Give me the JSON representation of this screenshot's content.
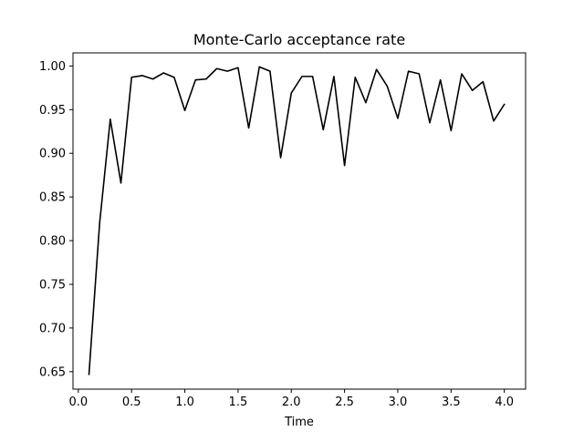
{
  "chart_data": {
    "type": "line",
    "title": "Monte-Carlo acceptance rate",
    "xlabel": "Time",
    "ylabel": "",
    "xlim": [
      -0.05,
      4.2
    ],
    "ylim": [
      0.63,
      1.015
    ],
    "xticks": [
      0.0,
      0.5,
      1.0,
      1.5,
      2.0,
      2.5,
      3.0,
      3.5,
      4.0
    ],
    "xtick_labels": [
      "0.0",
      "0.5",
      "1.0",
      "1.5",
      "2.0",
      "2.5",
      "3.0",
      "3.5",
      "4.0"
    ],
    "yticks": [
      0.65,
      0.7,
      0.75,
      0.8,
      0.85,
      0.9,
      0.95,
      1.0
    ],
    "ytick_labels": [
      "0.65",
      "0.70",
      "0.75",
      "0.80",
      "0.85",
      "0.90",
      "0.95",
      "1.00"
    ],
    "grid": false,
    "line_color": "#000000",
    "series": [
      {
        "x": [
          0.1,
          0.2,
          0.3,
          0.4,
          0.5,
          0.6,
          0.7,
          0.8,
          0.9,
          1.0,
          1.1,
          1.2,
          1.3,
          1.4,
          1.5,
          1.6,
          1.7,
          1.8,
          1.9,
          2.0,
          2.1,
          2.2,
          2.3,
          2.4,
          2.5,
          2.6,
          2.7,
          2.8,
          2.9,
          3.0,
          3.1,
          3.2,
          3.3,
          3.4,
          3.5,
          3.6,
          3.7,
          3.8,
          3.9,
          4.0
        ],
        "values": [
          0.647,
          0.82,
          0.939,
          0.866,
          0.987,
          0.989,
          0.985,
          0.992,
          0.987,
          0.949,
          0.984,
          0.985,
          0.997,
          0.994,
          0.998,
          0.929,
          0.999,
          0.994,
          0.895,
          0.969,
          0.988,
          0.988,
          0.927,
          0.988,
          0.886,
          0.987,
          0.958,
          0.996,
          0.977,
          0.94,
          0.994,
          0.991,
          0.935,
          0.984,
          0.926,
          0.991,
          0.972,
          0.982,
          0.937,
          0.956
        ]
      }
    ]
  }
}
